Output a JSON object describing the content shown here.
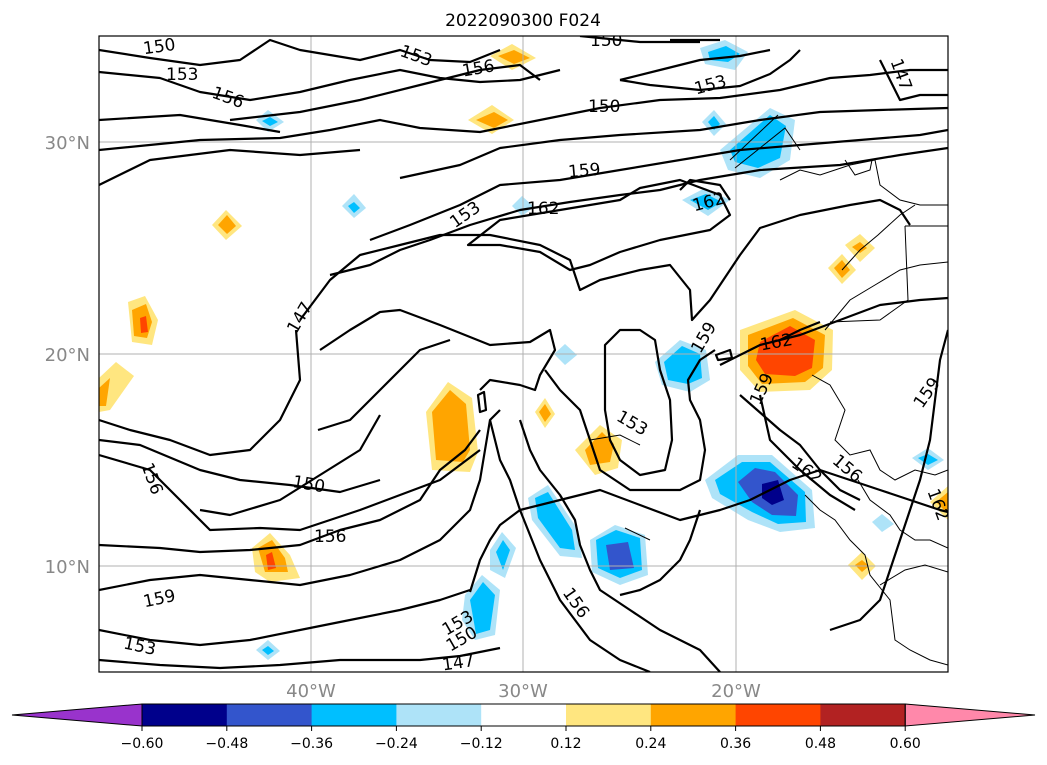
{
  "title": "2022090300 F024",
  "lat_labels": [
    "30°N",
    "20°N",
    "10°N"
  ],
  "lon_labels": [
    "40°W",
    "30°W",
    "20°W"
  ],
  "contour_labels": {
    "c150a": "150",
    "c153a": "153",
    "c156a": "156",
    "c153b": "153",
    "c156b": "156",
    "c150b": "150",
    "c153c": "153",
    "c147a": "147",
    "c150c": "150",
    "c159a": "159",
    "c153d": "153",
    "c162a": "162",
    "c162b": "162",
    "c147b": "147",
    "c159b": "159",
    "c162c": "162",
    "c159c": "159",
    "c159d": "159",
    "c153e": "153",
    "c156c": "156",
    "c150d": "150",
    "c156d": "156",
    "c162d": "162",
    "c156e": "156",
    "c162e": "162",
    "c159e": "159",
    "c153f": "153",
    "c150e": "150",
    "c156f": "156",
    "c153g": "153",
    "c147c": "147"
  },
  "colorbar": {
    "ticks": [
      "−0.60",
      "−0.48",
      "−0.36",
      "−0.24",
      "−0.12",
      "0.12",
      "0.24",
      "0.36",
      "0.48",
      "0.60"
    ],
    "colors": [
      "#9933cc",
      "#00008b",
      "#3355cc",
      "#00bfff",
      "#aee3f8",
      "#ffffff",
      "#ffe680",
      "#ffa500",
      "#ff4500",
      "#b22222",
      "#ff88aa"
    ]
  }
}
